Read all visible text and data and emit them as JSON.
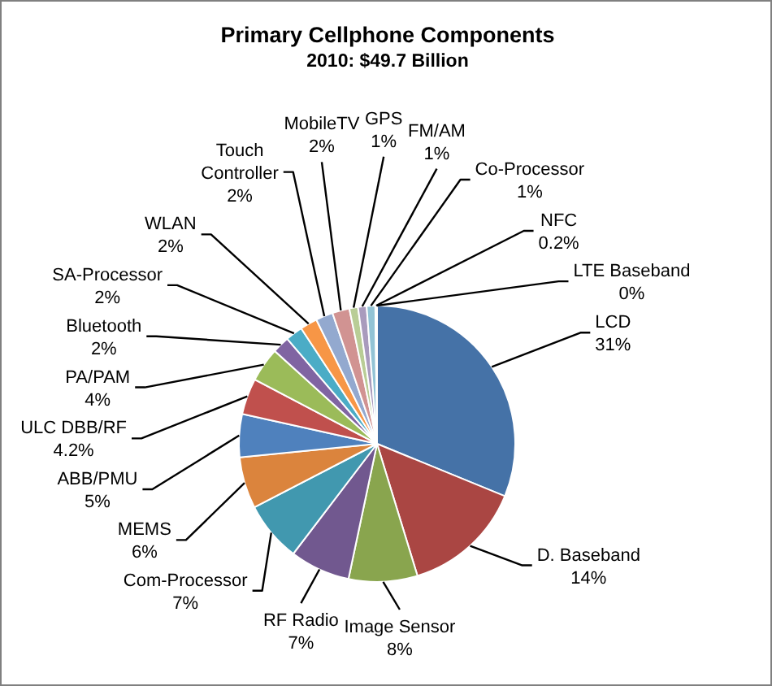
{
  "chart_data": {
    "type": "pie",
    "title": "Primary Cellphone Components",
    "subtitle": "2010: $49.7 Billion",
    "categories": [
      "LCD",
      "D. Baseband",
      "Image Sensor",
      "RF Radio",
      "Com-Processor",
      "MEMS",
      "ABB/PMU",
      "ULC DBB/RF",
      "PA/PAM",
      "Bluetooth",
      "SA-Processor",
      "WLAN",
      "Touch Controller",
      "MobileTV",
      "GPS",
      "FM/AM",
      "Co-Processor",
      "NFC",
      "LTE Baseband"
    ],
    "values": [
      31,
      14,
      8,
      7,
      7,
      6,
      5,
      4.2,
      4,
      2,
      2,
      2,
      2,
      2,
      1,
      1,
      1,
      0.2,
      0
    ],
    "value_labels": [
      "31%",
      "14%",
      "8%",
      "7%",
      "7%",
      "6%",
      "5%",
      "4.2%",
      "4%",
      "2%",
      "2%",
      "2%",
      "2%",
      "2%",
      "1%",
      "1%",
      "1%",
      "0.2%",
      "0%"
    ],
    "colors": [
      "#4572a7",
      "#aa4643",
      "#89a54e",
      "#71588f",
      "#4198af",
      "#db843d",
      "#4f81bd",
      "#c0504d",
      "#9bbb59",
      "#8064a2",
      "#4bacc6",
      "#f79646",
      "#93a9cf",
      "#d19392",
      "#b9cd96",
      "#a99bbd",
      "#92c3d5",
      "#aecbe6",
      "#c6d9f1"
    ]
  }
}
